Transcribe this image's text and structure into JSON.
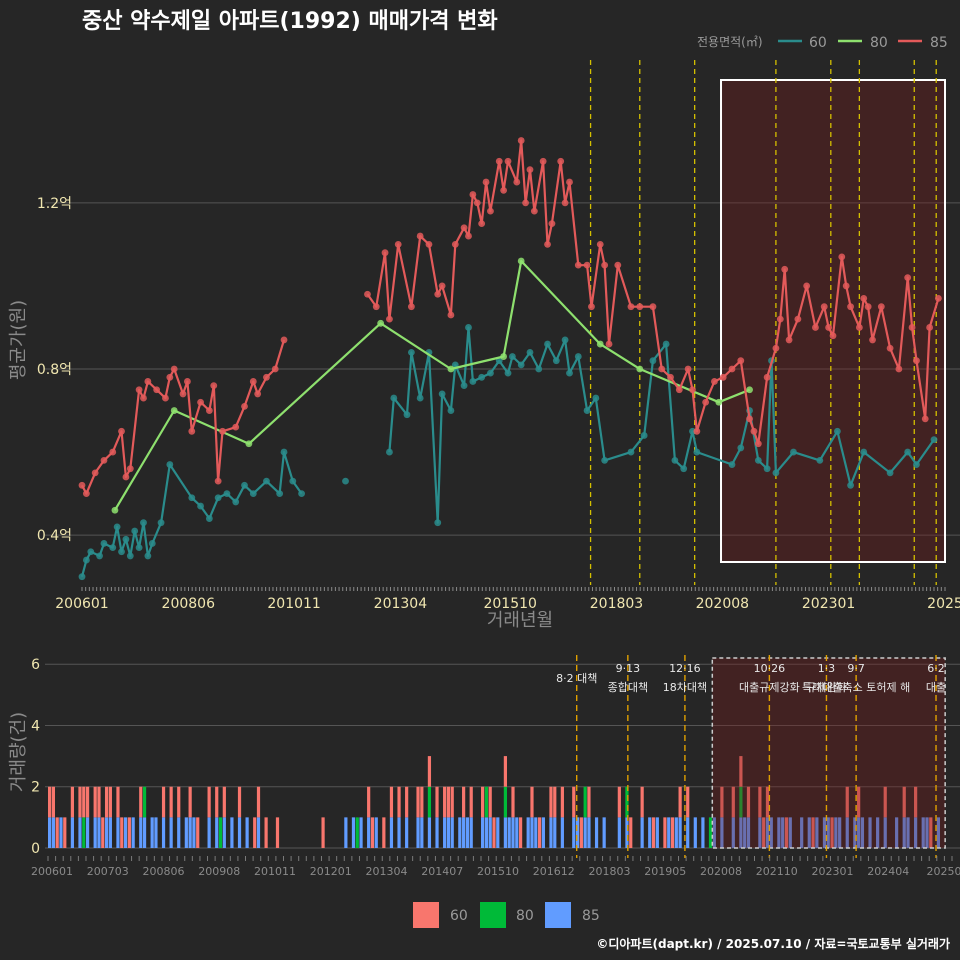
{
  "title": "중산 약수제일 아파트(1992) 매매가격 변화",
  "credit": "©디아파트(dapt.kr) / 2025.07.10 / 자료=국토교통부 실거래가",
  "colors": {
    "s60": "#2a8c8c",
    "s80": "#8ee06e",
    "s85": "#e35a5a",
    "b60": "#f8766d",
    "b80": "#00ba38",
    "b85": "#619cff"
  },
  "chart_data": [
    {
      "type": "line",
      "name": "price",
      "xlabel": "거래년월",
      "ylabel": "평균가(원)",
      "ylim": [
        0.28,
        1.58
      ],
      "x_ticks": [
        "200601",
        "200806",
        "201011",
        "201304",
        "201510",
        "201803",
        "202008",
        "202301",
        "2025"
      ],
      "y_ticks": [
        "0.4억",
        "0.8억",
        "1.2억"
      ],
      "y_tick_values": [
        0.4,
        0.8,
        1.2
      ],
      "legend": {
        "title": "전용면적(㎡)",
        "items": [
          "60",
          "80",
          "85"
        ],
        "placement": "top-right"
      },
      "policy_lines": [
        2017.58,
        2018.7,
        2019.95,
        2021.8,
        2023.05,
        2023.7,
        2024.95,
        2025.45
      ],
      "highlight": {
        "from": 2020.55,
        "to": 2025.65
      },
      "series": [
        {
          "name": "60",
          "points": [
            [
              2006.0,
              0.3
            ],
            [
              2006.1,
              0.34
            ],
            [
              2006.2,
              0.36
            ],
            [
              2006.4,
              0.35
            ],
            [
              2006.5,
              0.38
            ],
            [
              2006.7,
              0.37
            ],
            [
              2006.8,
              0.42
            ],
            [
              2006.9,
              0.36
            ],
            [
              2007.0,
              0.39
            ],
            [
              2007.1,
              0.35
            ],
            [
              2007.2,
              0.41
            ],
            [
              2007.3,
              0.37
            ],
            [
              2007.4,
              0.43
            ],
            [
              2007.5,
              0.35
            ],
            [
              2007.6,
              0.38
            ],
            [
              2007.8,
              0.43
            ],
            [
              2008.0,
              0.57
            ],
            [
              2008.5,
              0.49
            ],
            [
              2008.7,
              0.47
            ],
            [
              2008.9,
              0.44
            ],
            [
              2009.1,
              0.49
            ],
            [
              2009.3,
              0.5
            ],
            [
              2009.5,
              0.48
            ],
            [
              2009.7,
              0.52
            ],
            [
              2009.9,
              0.5
            ],
            [
              2010.2,
              0.53
            ],
            [
              2010.5,
              0.5
            ],
            [
              2010.6,
              0.6
            ],
            [
              2010.8,
              0.53
            ],
            [
              2011.0,
              0.5
            ],
            [
              2012.0,
              0.53
            ],
            [
              2013.0,
              0.6
            ],
            [
              2013.1,
              0.73
            ],
            [
              2013.4,
              0.69
            ],
            [
              2013.5,
              0.84
            ],
            [
              2013.7,
              0.73
            ],
            [
              2013.9,
              0.84
            ],
            [
              2014.1,
              0.43
            ],
            [
              2014.2,
              0.74
            ],
            [
              2014.4,
              0.7
            ],
            [
              2014.5,
              0.81
            ],
            [
              2014.7,
              0.76
            ],
            [
              2014.8,
              0.9
            ],
            [
              2014.9,
              0.77
            ],
            [
              2015.1,
              0.78
            ],
            [
              2015.3,
              0.79
            ],
            [
              2015.5,
              0.82
            ],
            [
              2015.7,
              0.79
            ],
            [
              2015.8,
              0.83
            ],
            [
              2016.0,
              0.81
            ],
            [
              2016.2,
              0.84
            ],
            [
              2016.4,
              0.8
            ],
            [
              2016.6,
              0.86
            ],
            [
              2016.8,
              0.82
            ],
            [
              2017.0,
              0.87
            ],
            [
              2017.1,
              0.79
            ],
            [
              2017.3,
              0.83
            ],
            [
              2017.5,
              0.7
            ],
            [
              2017.7,
              0.73
            ],
            [
              2017.9,
              0.58
            ],
            [
              2018.5,
              0.6
            ],
            [
              2018.8,
              0.64
            ],
            [
              2019.0,
              0.82
            ],
            [
              2019.3,
              0.86
            ],
            [
              2019.5,
              0.58
            ],
            [
              2019.7,
              0.56
            ],
            [
              2019.9,
              0.65
            ],
            [
              2020.0,
              0.6
            ],
            [
              2020.8,
              0.57
            ],
            [
              2021.0,
              0.61
            ],
            [
              2021.2,
              0.7
            ],
            [
              2021.4,
              0.58
            ],
            [
              2021.6,
              0.56
            ],
            [
              2021.7,
              0.82
            ],
            [
              2021.8,
              0.55
            ],
            [
              2022.2,
              0.6
            ],
            [
              2022.8,
              0.58
            ],
            [
              2023.2,
              0.65
            ],
            [
              2023.5,
              0.52
            ],
            [
              2023.8,
              0.6
            ],
            [
              2024.4,
              0.55
            ],
            [
              2024.8,
              0.6
            ],
            [
              2025.0,
              0.57
            ],
            [
              2025.4,
              0.63
            ]
          ]
        },
        {
          "name": "80",
          "points": [
            [
              2006.75,
              0.46
            ],
            [
              2008.1,
              0.7
            ],
            [
              2009.8,
              0.62
            ],
            [
              2012.8,
              0.91
            ],
            [
              2014.4,
              0.8
            ],
            [
              2015.6,
              0.83
            ],
            [
              2016.0,
              1.06
            ],
            [
              2017.8,
              0.86
            ],
            [
              2018.7,
              0.8
            ],
            [
              2020.5,
              0.72
            ],
            [
              2021.2,
              0.75
            ]
          ]
        },
        {
          "name": "85",
          "points": [
            [
              2006.0,
              0.52
            ],
            [
              2006.1,
              0.5
            ],
            [
              2006.3,
              0.55
            ],
            [
              2006.5,
              0.58
            ],
            [
              2006.7,
              0.6
            ],
            [
              2006.9,
              0.65
            ],
            [
              2007.0,
              0.54
            ],
            [
              2007.1,
              0.56
            ],
            [
              2007.3,
              0.75
            ],
            [
              2007.4,
              0.73
            ],
            [
              2007.5,
              0.77
            ],
            [
              2007.7,
              0.75
            ],
            [
              2007.9,
              0.73
            ],
            [
              2008.0,
              0.78
            ],
            [
              2008.1,
              0.8
            ],
            [
              2008.3,
              0.74
            ],
            [
              2008.4,
              0.77
            ],
            [
              2008.5,
              0.65
            ],
            [
              2008.7,
              0.72
            ],
            [
              2008.9,
              0.7
            ],
            [
              2009.0,
              0.76
            ],
            [
              2009.1,
              0.53
            ],
            [
              2009.2,
              0.65
            ],
            [
              2009.5,
              0.66
            ],
            [
              2009.7,
              0.71
            ],
            [
              2009.9,
              0.77
            ],
            [
              2010.0,
              0.74
            ],
            [
              2010.2,
              0.78
            ],
            [
              2010.4,
              0.8
            ],
            [
              2010.6,
              0.87
            ],
            [
              2012.5,
              0.98
            ],
            [
              2012.7,
              0.95
            ],
            [
              2012.9,
              1.08
            ],
            [
              2013.0,
              0.92
            ],
            [
              2013.2,
              1.1
            ],
            [
              2013.5,
              0.95
            ],
            [
              2013.7,
              1.12
            ],
            [
              2013.9,
              1.1
            ],
            [
              2014.1,
              0.98
            ],
            [
              2014.2,
              1.0
            ],
            [
              2014.4,
              0.93
            ],
            [
              2014.5,
              1.1
            ],
            [
              2014.7,
              1.14
            ],
            [
              2014.8,
              1.12
            ],
            [
              2014.9,
              1.22
            ],
            [
              2015.0,
              1.2
            ],
            [
              2015.1,
              1.15
            ],
            [
              2015.2,
              1.25
            ],
            [
              2015.3,
              1.18
            ],
            [
              2015.5,
              1.3
            ],
            [
              2015.6,
              1.23
            ],
            [
              2015.7,
              1.3
            ],
            [
              2015.9,
              1.25
            ],
            [
              2016.0,
              1.35
            ],
            [
              2016.1,
              1.2
            ],
            [
              2016.2,
              1.28
            ],
            [
              2016.3,
              1.18
            ],
            [
              2016.5,
              1.3
            ],
            [
              2016.6,
              1.1
            ],
            [
              2016.7,
              1.15
            ],
            [
              2016.9,
              1.3
            ],
            [
              2017.0,
              1.2
            ],
            [
              2017.1,
              1.25
            ],
            [
              2017.3,
              1.05
            ],
            [
              2017.5,
              1.05
            ],
            [
              2017.6,
              0.95
            ],
            [
              2017.8,
              1.1
            ],
            [
              2017.9,
              1.05
            ],
            [
              2018.0,
              0.86
            ],
            [
              2018.2,
              1.05
            ],
            [
              2018.5,
              0.95
            ],
            [
              2018.7,
              0.95
            ],
            [
              2019.0,
              0.95
            ],
            [
              2019.2,
              0.8
            ],
            [
              2019.4,
              0.78
            ],
            [
              2019.6,
              0.75
            ],
            [
              2019.8,
              0.8
            ],
            [
              2019.9,
              0.75
            ],
            [
              2020.0,
              0.65
            ],
            [
              2020.2,
              0.72
            ],
            [
              2020.4,
              0.77
            ],
            [
              2020.6,
              0.78
            ],
            [
              2020.8,
              0.8
            ],
            [
              2021.0,
              0.82
            ],
            [
              2021.2,
              0.68
            ],
            [
              2021.3,
              0.65
            ],
            [
              2021.4,
              0.62
            ],
            [
              2021.6,
              0.78
            ],
            [
              2021.8,
              0.85
            ],
            [
              2021.9,
              0.92
            ],
            [
              2022.0,
              1.04
            ],
            [
              2022.1,
              0.87
            ],
            [
              2022.3,
              0.92
            ],
            [
              2022.5,
              1.0
            ],
            [
              2022.7,
              0.9
            ],
            [
              2022.9,
              0.95
            ],
            [
              2023.0,
              0.9
            ],
            [
              2023.1,
              0.88
            ],
            [
              2023.3,
              1.07
            ],
            [
              2023.4,
              1.0
            ],
            [
              2023.5,
              0.95
            ],
            [
              2023.7,
              0.9
            ],
            [
              2023.8,
              0.97
            ],
            [
              2023.9,
              0.95
            ],
            [
              2024.0,
              0.87
            ],
            [
              2024.2,
              0.95
            ],
            [
              2024.4,
              0.85
            ],
            [
              2024.6,
              0.8
            ],
            [
              2024.8,
              1.02
            ],
            [
              2024.9,
              0.9
            ],
            [
              2025.0,
              0.82
            ],
            [
              2025.2,
              0.68
            ],
            [
              2025.3,
              0.9
            ],
            [
              2025.5,
              0.97
            ]
          ]
        }
      ]
    },
    {
      "type": "bar",
      "name": "volume",
      "ylabel": "거래량(건)",
      "ylim": [
        0,
        6.3
      ],
      "y_ticks": [
        "0",
        "2",
        "4",
        "6"
      ],
      "y_tick_values": [
        0,
        2,
        4,
        6
      ],
      "x_ticks": [
        "200601",
        "200703",
        "200806",
        "200908",
        "201011",
        "201201",
        "201304",
        "201407",
        "201510",
        "201612",
        "201803",
        "201905",
        "202008",
        "202110",
        "202301",
        "202404",
        "20250"
      ],
      "legend": {
        "items": [
          "60",
          "80",
          "85"
        ],
        "placement": "bottom"
      },
      "policy_events": [
        {
          "x": 2017.58,
          "date": "",
          "label": "8·2 대책"
        },
        {
          "x": 2018.7,
          "date": "9·13",
          "label": "종합대책"
        },
        {
          "x": 2019.95,
          "date": "12·16",
          "label": "18차대책"
        },
        {
          "x": 2021.8,
          "date": "10·26",
          "label": "대출규제강화"
        },
        {
          "x": 2023.05,
          "date": "1·3",
          "label": "규제완화"
        },
        {
          "x": 2023.7,
          "date": "9·7",
          "label": "특례대출축소 토허제 해"
        },
        {
          "x": 2025.45,
          "date": "6·2",
          "label": "대출"
        }
      ],
      "highlight": {
        "from": 2020.55,
        "to": 2025.65
      }
    }
  ]
}
